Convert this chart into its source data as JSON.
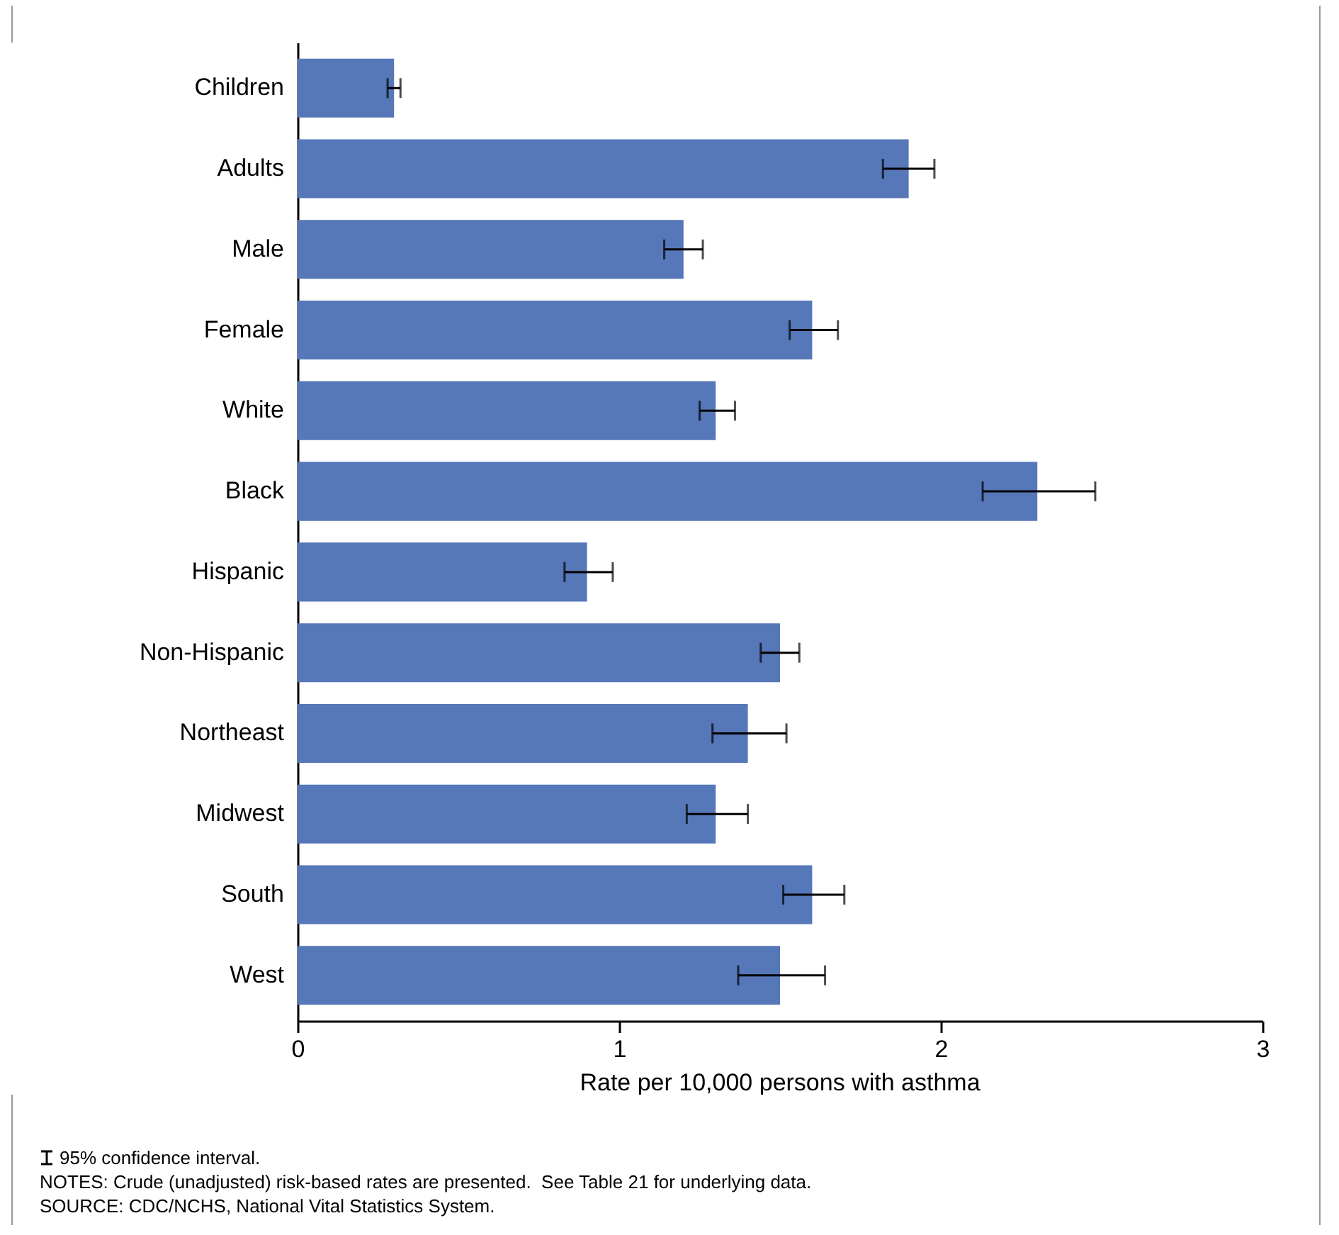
{
  "chart_data": {
    "type": "bar",
    "orientation": "horizontal",
    "xlabel": "Rate per 10,000 persons with asthma",
    "categories": [
      "Children",
      "Adults",
      "Male",
      "Female",
      "White",
      "Black",
      "Hispanic",
      "Non-Hispanic",
      "Northeast",
      "Midwest",
      "South",
      "West"
    ],
    "values": [
      0.3,
      1.9,
      1.2,
      1.6,
      1.3,
      2.3,
      0.9,
      1.5,
      1.4,
      1.3,
      1.6,
      1.5
    ],
    "errors": [
      [
        0.28,
        0.32
      ],
      [
        1.82,
        1.98
      ],
      [
        1.14,
        1.26
      ],
      [
        1.53,
        1.68
      ],
      [
        1.25,
        1.36
      ],
      [
        2.13,
        2.48
      ],
      [
        0.83,
        0.98
      ],
      [
        1.44,
        1.56
      ],
      [
        1.29,
        1.52
      ],
      [
        1.21,
        1.4
      ],
      [
        1.51,
        1.7
      ],
      [
        1.37,
        1.64
      ]
    ],
    "color": "#5677b8",
    "xlim": [
      0,
      3
    ],
    "xticks": [
      0,
      1,
      2,
      3
    ],
    "grid": false,
    "annotations": [
      "95% confidence interval.",
      "NOTES: Crude (unadjusted) risk-based rates are presented.  See Table 21 for underlying data.",
      "SOURCE: CDC/NCHS, National Vital Statistics System."
    ]
  }
}
